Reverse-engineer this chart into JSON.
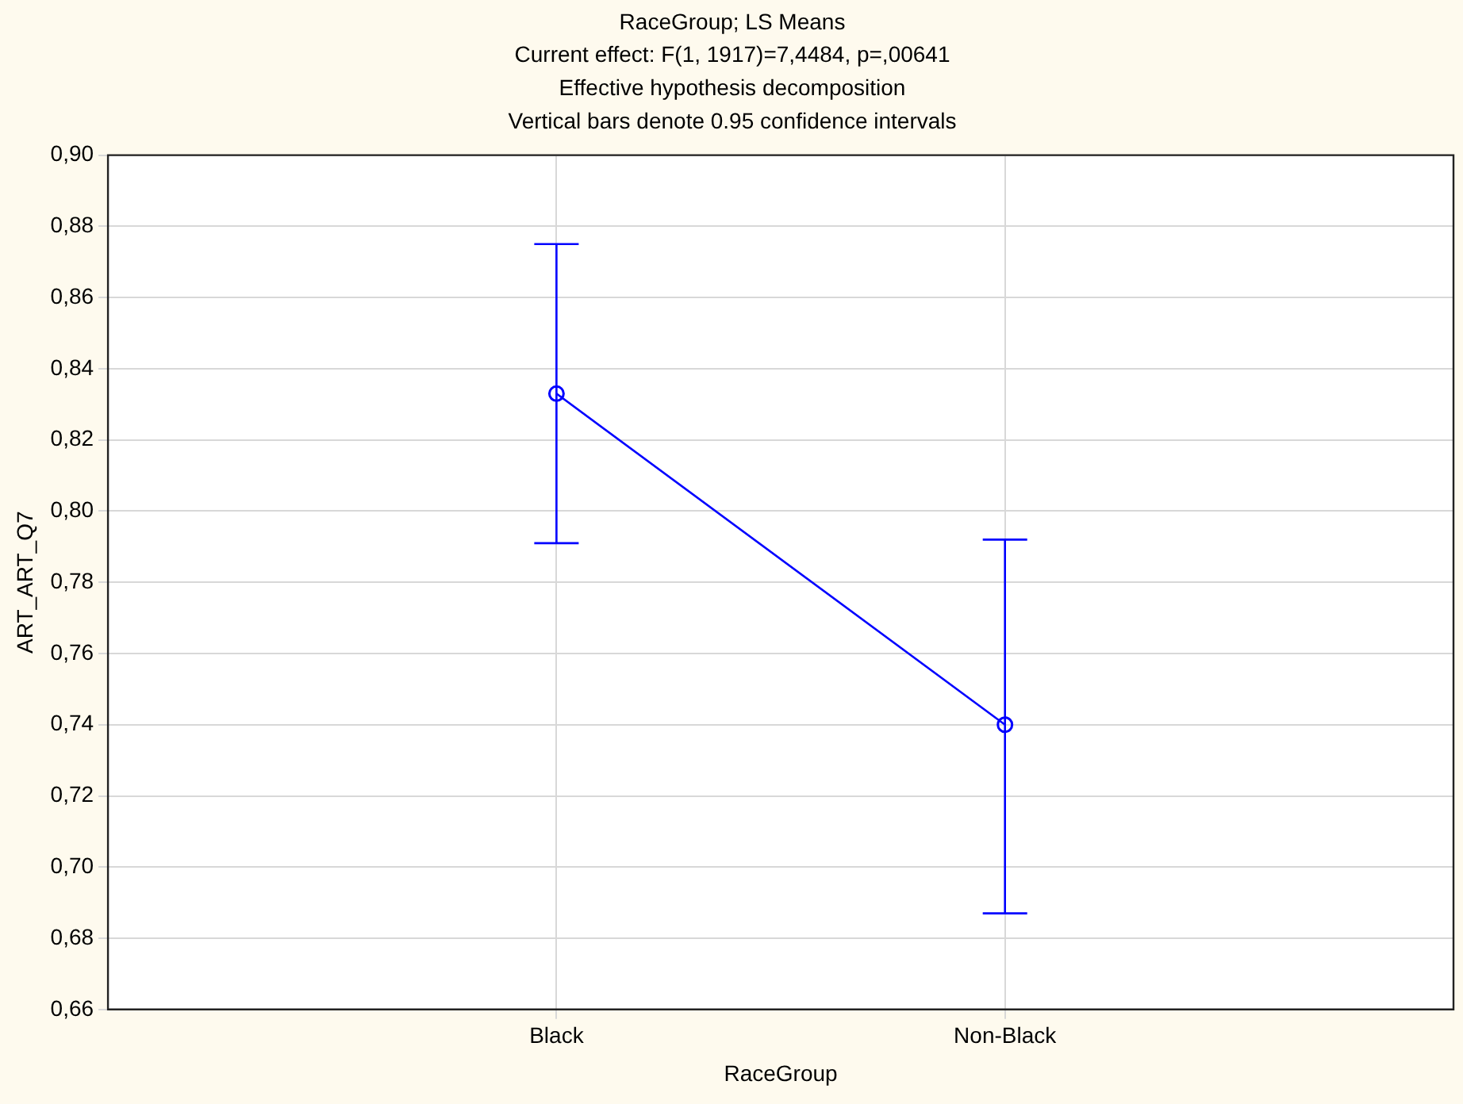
{
  "chart_data": {
    "type": "line",
    "title": "RaceGroup; LS Means",
    "subtitle": "Current effect: F(1, 1917)=7,4484, p=,00641",
    "annotations": [
      "Effective hypothesis decomposition",
      "Vertical bars denote 0.95 confidence intervals"
    ],
    "xlabel": "RaceGroup",
    "ylabel": "ART_ART_Q7",
    "categories": [
      "Black",
      "Non-Black"
    ],
    "series": [
      {
        "color": "#0000ff",
        "values": [
          0.833,
          0.74
        ],
        "errors": [
          [
            0.791,
            0.875
          ],
          [
            0.687,
            0.792
          ]
        ]
      }
    ],
    "ylim": [
      0.66,
      0.9
    ],
    "yticks": [
      {
        "value": 0.66,
        "label": "0,66"
      },
      {
        "value": 0.68,
        "label": "0,68"
      },
      {
        "value": 0.7,
        "label": "0,70"
      },
      {
        "value": 0.72,
        "label": "0,72"
      },
      {
        "value": 0.74,
        "label": "0,74"
      },
      {
        "value": 0.76,
        "label": "0,76"
      },
      {
        "value": 0.78,
        "label": "0,78"
      },
      {
        "value": 0.8,
        "label": "0,80"
      },
      {
        "value": 0.82,
        "label": "0,82"
      },
      {
        "value": 0.84,
        "label": "0,84"
      },
      {
        "value": 0.86,
        "label": "0,86"
      },
      {
        "value": 0.88,
        "label": "0,88"
      },
      {
        "value": 0.9,
        "label": "0,90"
      }
    ],
    "grid": true,
    "legend": false,
    "marker": "circle",
    "line_style": "solid"
  }
}
